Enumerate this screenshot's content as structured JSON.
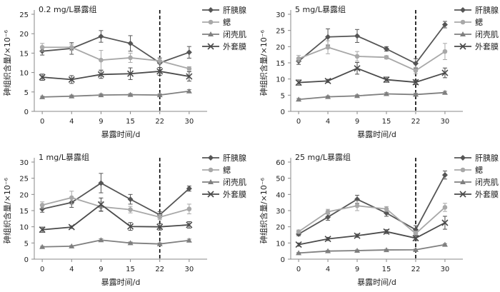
{
  "colors": {
    "肝胰腺": "#555555",
    "鳃": "#a8a8a8",
    "闭壳肌": "#7f7f7f",
    "外套膜": "#4a4a4a",
    "axis": "#888888",
    "dashed_line": "#000000"
  },
  "chart_data": [
    {
      "type": "line",
      "title": "0.2 mg/L暴露组",
      "xlabel": "暴露时间/d",
      "ylabel": "砷组织含量/×10⁻⁶",
      "x": [
        0,
        4,
        9,
        15,
        22,
        30
      ],
      "ylim": [
        0,
        25
      ],
      "yticks": [
        0,
        5,
        10,
        15,
        20,
        25
      ],
      "vline_at_x": 22,
      "legend_position": "right",
      "series": [
        {
          "name": "肝胰腺",
          "marker": "diamond",
          "values": [
            15.5,
            16.2,
            19.3,
            17.5,
            12.5,
            15.2
          ],
          "errors": [
            1.0,
            1.5,
            1.5,
            2.0,
            1.2,
            1.5
          ]
        },
        {
          "name": "鳃",
          "marker": "circle",
          "values": [
            16.5,
            16.5,
            13.2,
            13.8,
            13.0,
            11.0
          ],
          "errors": [
            1.0,
            0.8,
            2.5,
            1.2,
            0.8,
            0.5
          ]
        },
        {
          "name": "闭壳肌",
          "marker": "triangle",
          "values": [
            3.7,
            3.9,
            4.2,
            4.3,
            4.2,
            5.2
          ],
          "errors": [
            0.2,
            0.3,
            0.3,
            0.3,
            0.3,
            0.4
          ]
        },
        {
          "name": "外套膜",
          "marker": "x",
          "values": [
            8.8,
            8.2,
            9.5,
            9.7,
            10.3,
            9.0
          ],
          "errors": [
            0.8,
            1.0,
            1.0,
            1.5,
            1.0,
            1.2
          ]
        }
      ]
    },
    {
      "type": "line",
      "title": "5 mg/L暴露组",
      "xlabel": "暴露时间/d",
      "ylabel": "砷组织含量/×10⁻⁶",
      "x": [
        0,
        4,
        9,
        15,
        22,
        30
      ],
      "ylim": [
        0,
        30
      ],
      "yticks": [
        0,
        5,
        10,
        15,
        20,
        25,
        30
      ],
      "vline_at_x": 22,
      "legend_position": "right",
      "series": [
        {
          "name": "肝胰腺",
          "marker": "diamond",
          "values": [
            15.5,
            23.0,
            23.3,
            19.3,
            14.8,
            26.8
          ],
          "errors": [
            1.0,
            2.5,
            2.0,
            0.7,
            1.5,
            1.0
          ]
        },
        {
          "name": "鳃",
          "marker": "circle",
          "values": [
            16.3,
            19.8,
            17.0,
            16.7,
            12.6,
            18.5
          ],
          "errors": [
            1.0,
            2.0,
            1.5,
            0.5,
            1.0,
            2.5
          ]
        },
        {
          "name": "闭壳肌",
          "marker": "triangle",
          "values": [
            3.7,
            4.5,
            4.8,
            5.4,
            5.2,
            5.8
          ],
          "errors": [
            0.3,
            0.3,
            0.3,
            0.4,
            0.4,
            0.4
          ]
        },
        {
          "name": "外套膜",
          "marker": "x",
          "values": [
            8.9,
            9.4,
            13.3,
            9.8,
            9.0,
            11.9
          ],
          "errors": [
            0.8,
            0.5,
            1.8,
            0.8,
            0.7,
            1.5
          ]
        }
      ]
    },
    {
      "type": "line",
      "title": "1 mg/L暴露组",
      "xlabel": "暴露时间/d",
      "ylabel": "砷组织含量/×10⁻⁶",
      "x": [
        0,
        4,
        9,
        15,
        22,
        30
      ],
      "ylim": [
        0,
        30
      ],
      "yticks": [
        0,
        5,
        10,
        15,
        20,
        25,
        30
      ],
      "vline_at_x": 22,
      "legend_position": "right",
      "series": [
        {
          "name": "肝胰腺",
          "marker": "diamond",
          "values": [
            15.5,
            17.5,
            23.5,
            18.5,
            13.7,
            21.8
          ],
          "errors": [
            1.0,
            1.5,
            3.0,
            1.5,
            1.0,
            0.8
          ]
        },
        {
          "name": "鳃",
          "marker": "circle",
          "values": [
            16.7,
            19.0,
            16.2,
            15.3,
            13.0,
            15.5
          ],
          "errors": [
            1.0,
            2.0,
            1.5,
            1.0,
            0.8,
            1.5
          ]
        },
        {
          "name": "闭壳肌",
          "marker": "triangle",
          "values": [
            3.8,
            4.0,
            5.9,
            5.0,
            4.7,
            5.8
          ],
          "errors": [
            0.2,
            0.2,
            0.4,
            0.3,
            0.3,
            0.4
          ]
        },
        {
          "name": "外套膜",
          "marker": "x",
          "values": [
            9.1,
            9.9,
            16.9,
            10.1,
            10.0,
            10.6
          ],
          "errors": [
            0.8,
            0.4,
            2.0,
            1.2,
            1.0,
            1.0
          ]
        }
      ]
    },
    {
      "type": "line",
      "title": "25 mg/L暴露组",
      "xlabel": "暴露时间/d",
      "ylabel": "砷组织含量/×10⁻⁶",
      "x": [
        0,
        4,
        9,
        15,
        22,
        30
      ],
      "ylim": [
        0,
        60
      ],
      "yticks": [
        0,
        10,
        20,
        30,
        40,
        50,
        60
      ],
      "vline_at_x": 22,
      "legend_position": "right",
      "series": [
        {
          "name": "肝胰腺",
          "marker": "diamond",
          "values": [
            15.5,
            26.0,
            37.0,
            28.5,
            18.2,
            52.0
          ],
          "errors": [
            1.0,
            2.0,
            2.5,
            2.0,
            2.5,
            2.5
          ]
        },
        {
          "name": "鳃",
          "marker": "circle",
          "values": [
            17.0,
            29.3,
            33.0,
            31.0,
            15.8,
            32.0
          ],
          "errors": [
            1.0,
            1.5,
            3.0,
            1.5,
            1.5,
            2.5
          ]
        },
        {
          "name": "闭壳肌",
          "marker": "triangle",
          "values": [
            3.8,
            5.0,
            5.3,
            5.7,
            5.8,
            9.0
          ],
          "errors": [
            0.3,
            0.4,
            0.4,
            0.4,
            0.4,
            0.6
          ]
        },
        {
          "name": "外套膜",
          "marker": "x",
          "values": [
            9.0,
            12.5,
            14.5,
            17.0,
            13.0,
            22.5
          ],
          "errors": [
            1.0,
            1.0,
            1.0,
            1.2,
            1.5,
            4.0
          ]
        }
      ]
    }
  ]
}
